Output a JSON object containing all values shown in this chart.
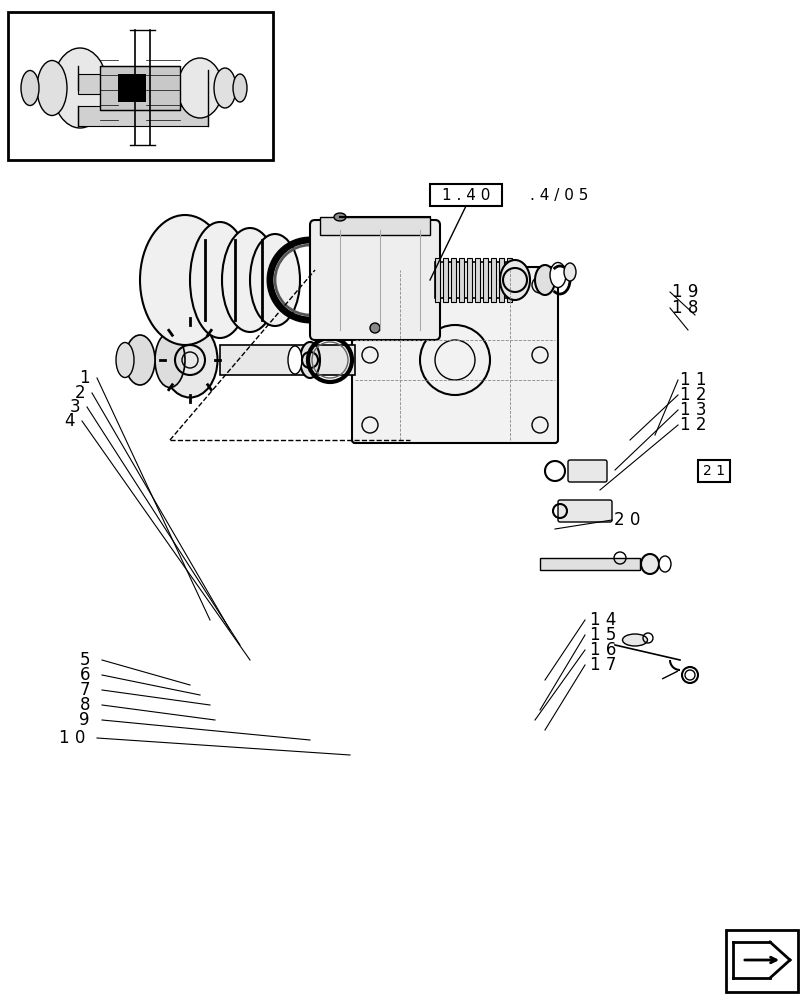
{
  "bg_color": "#ffffff",
  "line_color": "#000000",
  "page_ref": "1 . 4 0 . 4 / 0 5",
  "page_ref_boxed": "1 . 4 0",
  "labels_left_upper": [
    "1",
    "2",
    "3",
    "4"
  ],
  "labels_left_lower": [
    "5",
    "6",
    "7",
    "8",
    "9",
    "1 0"
  ],
  "labels_right_upper": [
    "1 9",
    "1 8",
    "1 1",
    "1 2",
    "1 3",
    "1 2"
  ],
  "labels_right_lower": [
    "1 4",
    "1 5",
    "1 6",
    "1 7"
  ],
  "label_boxed_right": "2 1",
  "label_20": "2 0"
}
